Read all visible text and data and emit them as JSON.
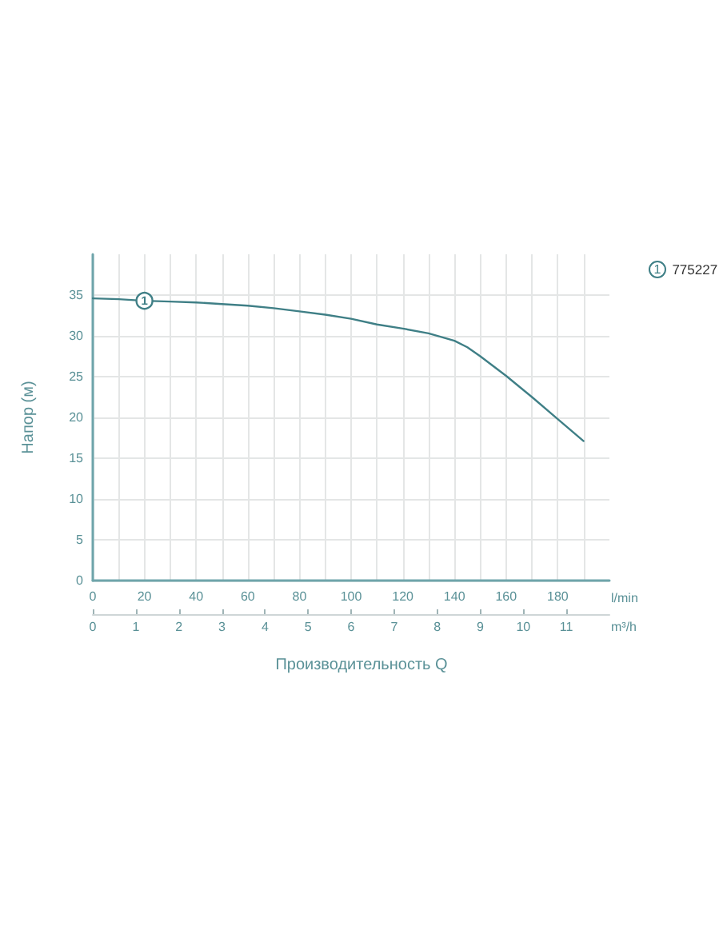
{
  "chart_data": {
    "type": "line",
    "xlabel": "l/min",
    "x2label": "m³/h",
    "ylabel": "Напор (м)",
    "annotations": [
      {
        "text": "1",
        "x": 20,
        "y": 34.3
      },
      "Производительность Q"
    ],
    "x": [
      0,
      10,
      20,
      30,
      40,
      50,
      60,
      70,
      80,
      90,
      100,
      110,
      120,
      130,
      140,
      145,
      150,
      160,
      170,
      180,
      190
    ],
    "series": [
      {
        "name": "775227",
        "color": "#3f7f86",
        "values": [
          34.6,
          34.5,
          34.3,
          34.2,
          34.1,
          33.9,
          33.7,
          33.4,
          33.0,
          32.6,
          32.1,
          31.4,
          30.9,
          30.3,
          29.4,
          28.6,
          27.5,
          25.1,
          22.5,
          19.8,
          17.1
        ]
      }
    ],
    "xlim": [
      0,
      200
    ],
    "xticks": [
      0,
      {
        "value": 10,
        "label": null
      },
      20,
      {
        "value": 30,
        "label": null
      },
      40,
      {
        "value": 50,
        "label": null
      },
      60,
      {
        "value": 70,
        "label": null
      },
      80,
      {
        "value": 90,
        "label": null
      },
      100,
      {
        "value": 110,
        "label": null
      },
      120,
      {
        "value": 130,
        "label": null
      },
      140,
      {
        "value": 150,
        "label": null
      },
      160,
      {
        "value": 170,
        "label": null
      },
      180,
      {
        "value": 190,
        "label": null
      }
    ],
    "x2lim": [
      0,
      12
    ],
    "x2ticks": [
      0,
      1,
      2,
      3,
      4,
      5,
      6,
      7,
      8,
      9,
      10,
      11
    ],
    "ylim": [
      0,
      40
    ],
    "yticks": [
      0,
      5,
      10,
      15,
      20,
      25,
      30,
      35
    ],
    "grid": true,
    "legend": "top right",
    "marker": "none",
    "line_style": "solid"
  }
}
